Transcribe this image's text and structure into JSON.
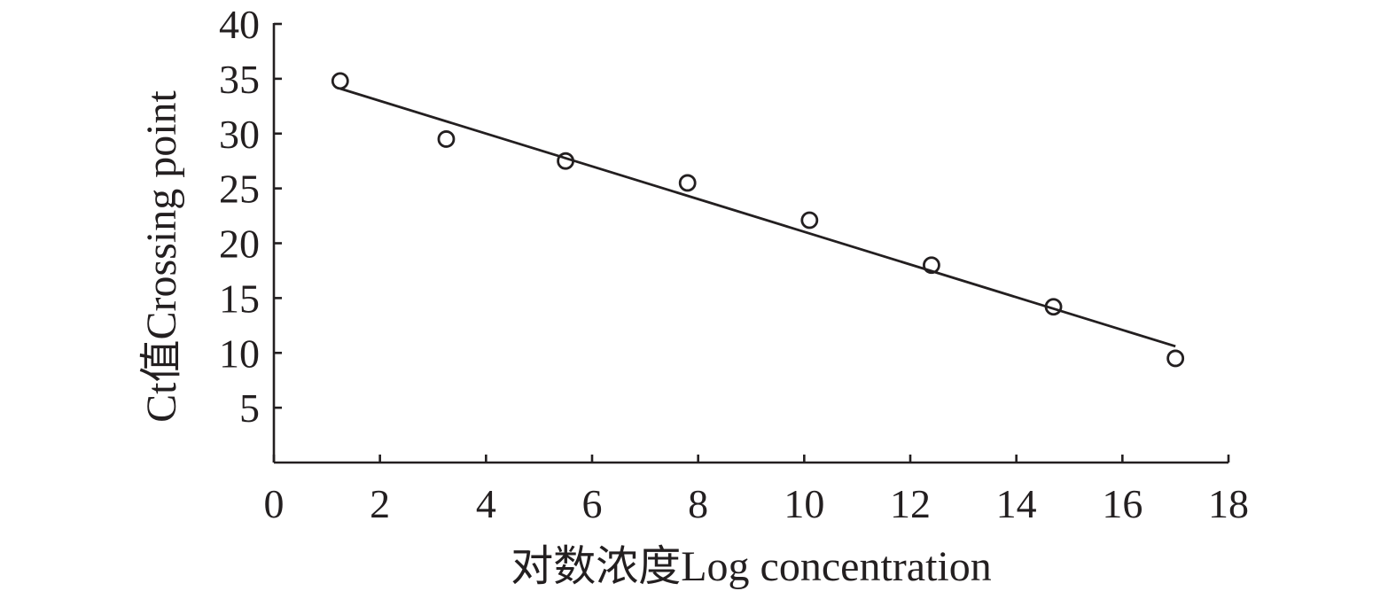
{
  "chart_data": {
    "type": "scatter",
    "xlabel": "对数浓度Log concentration",
    "ylabel": "Ct值Crossing point",
    "xlim": [
      0,
      18
    ],
    "ylim": [
      0,
      40
    ],
    "x_ticks": [
      0,
      2,
      4,
      6,
      8,
      10,
      12,
      14,
      16,
      18
    ],
    "y_ticks": [
      5,
      10,
      15,
      20,
      25,
      30,
      35,
      40
    ],
    "grid": false,
    "legend": "none",
    "color": "#231f20",
    "series": [
      {
        "x": [
          1.25,
          3.25,
          5.5,
          7.8,
          10.1,
          12.4,
          14.7,
          17.0
        ],
        "y": [
          34.8,
          29.5,
          27.5,
          25.5,
          22.1,
          18.0,
          14.2,
          9.5
        ]
      }
    ],
    "trendline": {
      "x": [
        1.25,
        17.0
      ],
      "y": [
        34.1,
        10.6
      ]
    }
  }
}
